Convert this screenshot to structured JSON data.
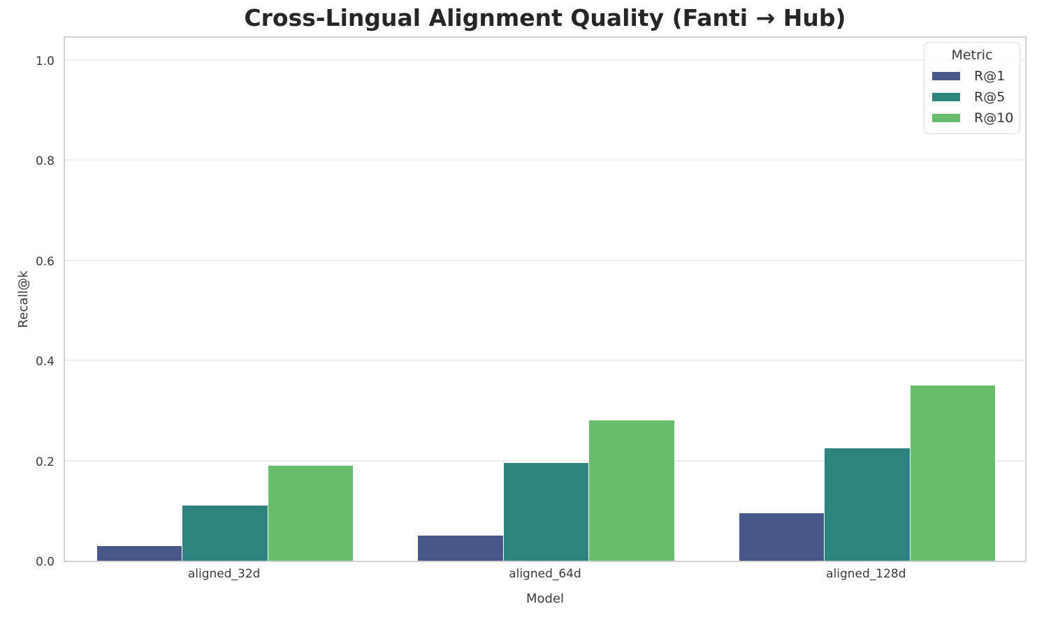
{
  "chart_data": {
    "type": "bar",
    "title": "Cross-Lingual Alignment Quality (Fanti → Hub)",
    "xlabel": "Model",
    "ylabel": "Recall@k",
    "categories": [
      "aligned_32d",
      "aligned_64d",
      "aligned_128d"
    ],
    "series": [
      {
        "name": "R@1",
        "color": "#47578a",
        "values": [
          0.03,
          0.05,
          0.095
        ]
      },
      {
        "name": "R@5",
        "color": "#2e837e",
        "values": [
          0.11,
          0.195,
          0.225
        ]
      },
      {
        "name": "R@10",
        "color": "#68bd6c",
        "values": [
          0.19,
          0.28,
          0.35
        ]
      }
    ],
    "ylim": [
      0,
      1.05
    ],
    "yticks": [
      0.0,
      0.2,
      0.4,
      0.6,
      0.8,
      1.0
    ],
    "grid": true,
    "legend_title": "Metric",
    "legend_position": "upper right",
    "bar_group_width": 0.8
  }
}
